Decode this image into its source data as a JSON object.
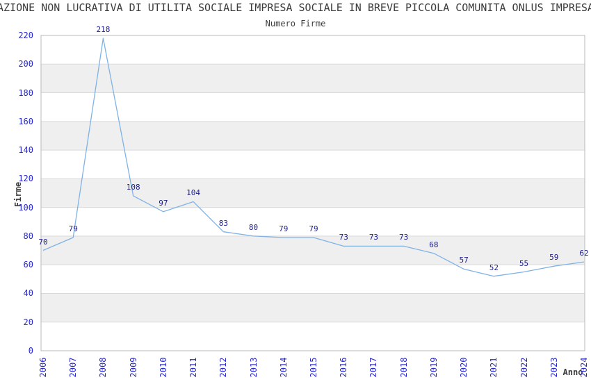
{
  "page": {
    "title_partial": "AZIONE NON LUCRATIVA DI UTILITA SOCIALE IMPRESA SOCIALE IN BREVE PICCOLA COMUNITA ONLUS IMPRESA"
  },
  "chart_data": {
    "type": "line",
    "title": "Numero Firme",
    "xlabel": "Anno",
    "ylabel": "Firme",
    "categories": [
      "2006",
      "2007",
      "2008",
      "2009",
      "2010",
      "2011",
      "2012",
      "2013",
      "2014",
      "2015",
      "2016",
      "2017",
      "2018",
      "2019",
      "2020",
      "2021",
      "2022",
      "2023",
      "2024"
    ],
    "values": [
      70,
      79,
      218,
      108,
      97,
      104,
      83,
      80,
      79,
      79,
      73,
      73,
      73,
      68,
      57,
      52,
      55,
      59,
      62
    ],
    "ylim": [
      0,
      220
    ],
    "yticks": [
      0,
      20,
      40,
      60,
      80,
      100,
      120,
      140,
      160,
      180,
      200,
      220
    ],
    "grid": "horizontal",
    "legend": "none",
    "x_tick_rotation": 90,
    "point_labels_visible": true,
    "colors": {
      "line": "#7fb2e6",
      "point_labels": "#1c1c8e",
      "tick_labels": "#2828cc",
      "band": "#efefef",
      "gridline": "#d9d9d9",
      "spine": "#b9b9b9",
      "text": "#3c3c3c"
    }
  }
}
